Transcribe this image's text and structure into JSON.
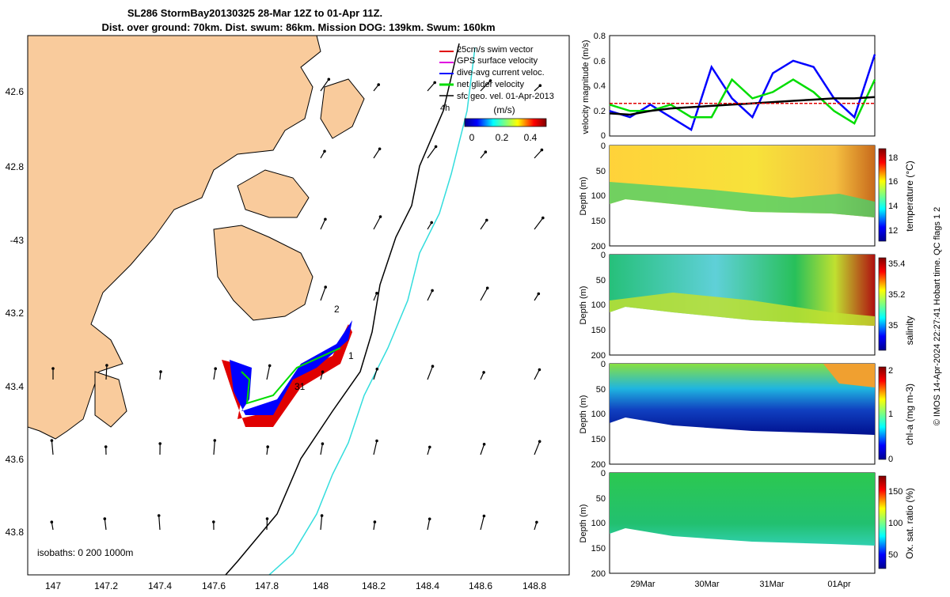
{
  "title_line1": "SL286 StormBay20130325 28-Mar 12Z to 01-Apr 11Z.",
  "title_line2": "Dist. over ground: 70km. Dist. swum: 86km. Mission DOG: 139km. Swum: 160km",
  "map": {
    "lon_ticks": [
      "147",
      "147.2",
      "147.4",
      "147.6",
      "147.8",
      "148",
      "148.2",
      "148.4",
      "148.6",
      "148.8"
    ],
    "lat_ticks": [
      "42.6",
      "42.8",
      "-43",
      "43.2",
      "43.4",
      "43.6",
      "43.8"
    ],
    "legend": [
      {
        "label": "25cm/s swim vector",
        "color": "#e00000"
      },
      {
        "label": "GPS surface velocity",
        "color": "#e000e0"
      },
      {
        "label": "dive-avg current veloc.",
        "color": "#0000ff"
      },
      {
        "label": "net glider velocity",
        "color": "#00dd00"
      },
      {
        "label": "sfc geo. vel. 01-Apr-2013",
        "color": "#000000"
      }
    ],
    "legend_note": "4h",
    "colorbar_title": "(m/s)",
    "colorbar_ticks": [
      "0",
      "0.2",
      "0.4"
    ],
    "isobaths": "isobaths: 0   200  1000m",
    "track_labels": [
      "1",
      "2",
      "31"
    ],
    "land_color": "#f9cb9c",
    "isobath_200_color": "#000000",
    "isobath_1000_color": "#33dddd"
  },
  "chart_data": [
    {
      "type": "line",
      "ylabel": "velocity magnitude (m/s)",
      "ylim": [
        0,
        0.8
      ],
      "yticks": [
        "0",
        "0.2",
        "0.4",
        "0.6",
        "0.8"
      ],
      "x": [
        29.0,
        29.25,
        29.5,
        29.75,
        30.0,
        30.25,
        30.5,
        30.75,
        31.0,
        31.25,
        31.5,
        31.75,
        32.0,
        32.25
      ],
      "series": [
        {
          "color": "#0000ff",
          "values": [
            0.2,
            0.15,
            0.25,
            0.15,
            0.05,
            0.55,
            0.3,
            0.15,
            0.5,
            0.6,
            0.55,
            0.3,
            0.15,
            0.65
          ]
        },
        {
          "color": "#00dd00",
          "values": [
            0.25,
            0.2,
            0.2,
            0.25,
            0.15,
            0.15,
            0.45,
            0.3,
            0.35,
            0.45,
            0.35,
            0.2,
            0.1,
            0.45
          ]
        },
        {
          "color": "#000000",
          "values": [
            0.18,
            0.17,
            0.2,
            0.22,
            0.23,
            0.24,
            0.25,
            0.26,
            0.27,
            0.28,
            0.29,
            0.3,
            0.3,
            0.31
          ]
        },
        {
          "color": "#e00000",
          "values": [
            0.26,
            0.26,
            0.26,
            0.26,
            0.26,
            0.26,
            0.26,
            0.26,
            0.26,
            0.26,
            0.26,
            0.26,
            0.26,
            0.26
          ]
        }
      ]
    },
    {
      "type": "heatmap",
      "ylabel": "Depth (m)",
      "ylim": [
        0,
        200
      ],
      "yticks": [
        "0",
        "50",
        "100",
        "150",
        "200"
      ],
      "clabel": "temperature (°C)",
      "cticks": [
        "12",
        "14",
        "16",
        "18"
      ]
    },
    {
      "type": "heatmap",
      "ylabel": "Depth (m)",
      "ylim": [
        0,
        200
      ],
      "yticks": [
        "0",
        "50",
        "100",
        "150",
        "200"
      ],
      "clabel": "salinity",
      "cticks": [
        "35",
        "35.2",
        "35.4"
      ]
    },
    {
      "type": "heatmap",
      "ylabel": "Depth (m)",
      "ylim": [
        0,
        200
      ],
      "yticks": [
        "0",
        "50",
        "100",
        "150",
        "200"
      ],
      "clabel": "chl-a (mg m-3)",
      "cticks": [
        "0",
        "1",
        "2"
      ]
    },
    {
      "type": "heatmap",
      "ylabel": "Depth (m)",
      "ylim": [
        0,
        200
      ],
      "yticks": [
        "0",
        "50",
        "100",
        "150",
        "200"
      ],
      "clabel": "Ox. sat. ratio (%)",
      "cticks": [
        "50",
        "100",
        "150"
      ],
      "xticks": [
        "29Mar",
        "30Mar",
        "31Mar",
        "01Apr"
      ]
    }
  ],
  "footer": "© IMOS 14-Apr-2024 22:27:41 Hobart time. QC flags 1  2"
}
